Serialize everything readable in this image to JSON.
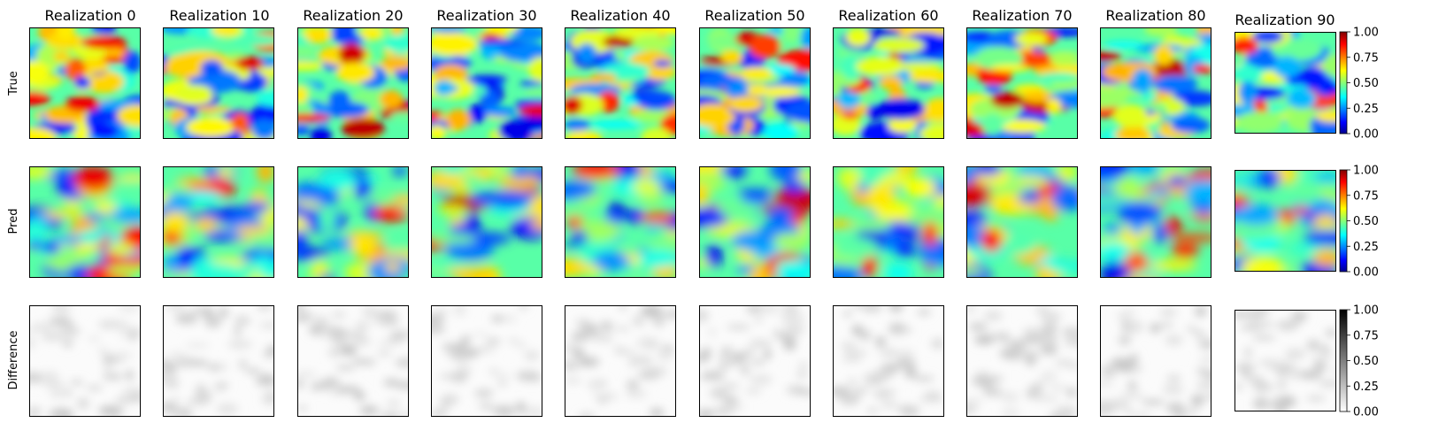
{
  "figure": {
    "columns": [
      "Realization 0",
      "Realization 10",
      "Realization 20",
      "Realization 30",
      "Realization 40",
      "Realization 50",
      "Realization 60",
      "Realization 70",
      "Realization 80",
      "Realization 90"
    ],
    "rows": [
      "True",
      "Pred",
      "Difference"
    ]
  },
  "chart_data": {
    "type": "heatmap",
    "panels": {
      "count": 30,
      "grid": "3 rows x 10 columns",
      "row_labels": [
        "True",
        "Pred",
        "Difference"
      ],
      "column_titles": [
        "Realization 0",
        "Realization 10",
        "Realization 20",
        "Realization 30",
        "Realization 40",
        "Realization 50",
        "Realization 60",
        "Realization 70",
        "Realization 80",
        "Realization 90"
      ],
      "axes_ticks": "none"
    },
    "colorbars": [
      {
        "row": "True",
        "colormap": "jet",
        "range": [
          0,
          1
        ],
        "ticks": [
          "0.00",
          "0.25",
          "0.50",
          "0.75",
          "1.00"
        ]
      },
      {
        "row": "Pred",
        "colormap": "jet",
        "range": [
          0,
          1
        ],
        "ticks": [
          "0.00",
          "0.25",
          "0.50",
          "0.75",
          "1.00"
        ]
      },
      {
        "row": "Difference",
        "colormap": "gray_r",
        "range": [
          0,
          1
        ],
        "ticks": [
          "0.00",
          "0.25",
          "0.50",
          "0.75",
          "1.00"
        ]
      }
    ],
    "jet_colors": [
      "#00008f",
      "#0000ff",
      "#00ffff",
      "#ffff00",
      "#ff0000",
      "#800000"
    ],
    "gray_colors": [
      "#ffffff",
      "#000000"
    ]
  }
}
